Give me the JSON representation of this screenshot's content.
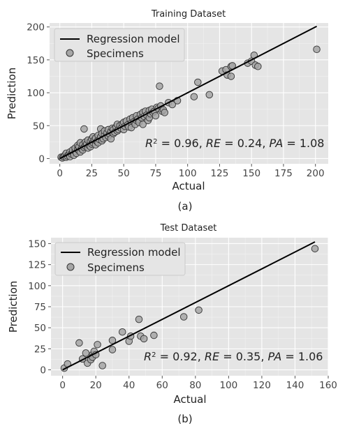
{
  "chart_data": [
    {
      "id": "a",
      "type": "scatter",
      "title": "Training Dataset",
      "xlabel": "Actual",
      "ylabel": "Prediction",
      "xlim": [
        -8,
        210
      ],
      "ylim": [
        -8,
        206
      ],
      "xticks": [
        0,
        25,
        50,
        75,
        100,
        125,
        150,
        175,
        200
      ],
      "yticks": [
        0,
        50,
        100,
        150,
        200
      ],
      "grid": true,
      "background": "#e5e5e5",
      "legend_position": "top-left",
      "legend": [
        "Regression model",
        "Specimens"
      ],
      "regression_line": {
        "x": [
          0,
          201
        ],
        "y": [
          0,
          201
        ]
      },
      "annotation": {
        "r2": "0.96",
        "re": "0.24",
        "pa": "1.08"
      },
      "caption": "(a)",
      "points": [
        [
          1,
          2
        ],
        [
          2,
          1
        ],
        [
          3,
          3
        ],
        [
          4,
          5
        ],
        [
          5,
          2
        ],
        [
          5,
          8
        ],
        [
          6,
          4
        ],
        [
          7,
          6
        ],
        [
          8,
          10
        ],
        [
          8,
          3
        ],
        [
          9,
          7
        ],
        [
          10,
          9
        ],
        [
          10,
          13
        ],
        [
          11,
          5
        ],
        [
          12,
          11
        ],
        [
          12,
          16
        ],
        [
          13,
          8
        ],
        [
          14,
          14
        ],
        [
          14,
          20
        ],
        [
          15,
          12
        ],
        [
          15,
          18
        ],
        [
          16,
          24
        ],
        [
          16,
          10
        ],
        [
          17,
          15
        ],
        [
          18,
          21
        ],
        [
          18,
          13
        ],
        [
          19,
          17
        ],
        [
          19,
          45
        ],
        [
          20,
          25
        ],
        [
          20,
          19
        ],
        [
          21,
          22
        ],
        [
          22,
          16
        ],
        [
          22,
          28
        ],
        [
          23,
          20
        ],
        [
          24,
          26
        ],
        [
          24,
          18
        ],
        [
          25,
          30
        ],
        [
          25,
          22
        ],
        [
          26,
          24
        ],
        [
          26,
          33
        ],
        [
          27,
          28
        ],
        [
          28,
          21
        ],
        [
          28,
          31
        ],
        [
          29,
          26
        ],
        [
          30,
          35
        ],
        [
          30,
          24
        ],
        [
          31,
          29
        ],
        [
          32,
          33
        ],
        [
          32,
          45
        ],
        [
          33,
          38
        ],
        [
          33,
          27
        ],
        [
          34,
          30
        ],
        [
          35,
          36
        ],
        [
          35,
          42
        ],
        [
          36,
          32
        ],
        [
          37,
          39
        ],
        [
          38,
          34
        ],
        [
          38,
          44
        ],
        [
          39,
          37
        ],
        [
          40,
          41
        ],
        [
          40,
          30
        ],
        [
          41,
          46
        ],
        [
          42,
          38
        ],
        [
          42,
          44
        ],
        [
          43,
          40
        ],
        [
          44,
          48
        ],
        [
          45,
          42
        ],
        [
          45,
          52
        ],
        [
          46,
          44
        ],
        [
          47,
          50
        ],
        [
          48,
          46
        ],
        [
          49,
          53
        ],
        [
          50,
          55
        ],
        [
          50,
          44
        ],
        [
          51,
          49
        ],
        [
          52,
          57
        ],
        [
          53,
          51
        ],
        [
          54,
          48
        ],
        [
          55,
          60
        ],
        [
          56,
          54
        ],
        [
          56,
          47
        ],
        [
          57,
          62
        ],
        [
          58,
          56
        ],
        [
          59,
          52
        ],
        [
          60,
          65
        ],
        [
          60,
          58
        ],
        [
          61,
          60
        ],
        [
          62,
          55
        ],
        [
          63,
          67
        ],
        [
          64,
          62
        ],
        [
          65,
          70
        ],
        [
          65,
          52
        ],
        [
          66,
          64
        ],
        [
          67,
          72
        ],
        [
          68,
          66
        ],
        [
          69,
          58
        ],
        [
          70,
          73
        ],
        [
          70,
          62
        ],
        [
          71,
          68
        ],
        [
          72,
          75
        ],
        [
          73,
          70
        ],
        [
          74,
          72
        ],
        [
          75,
          65
        ],
        [
          76,
          78
        ],
        [
          77,
          76
        ],
        [
          78,
          110
        ],
        [
          79,
          80
        ],
        [
          80,
          72
        ],
        [
          81,
          74
        ],
        [
          82,
          70
        ],
        [
          85,
          85
        ],
        [
          88,
          82
        ],
        [
          92,
          88
        ],
        [
          105,
          94
        ],
        [
          108,
          116
        ],
        [
          117,
          97
        ],
        [
          127,
          133
        ],
        [
          130,
          135
        ],
        [
          131,
          127
        ],
        [
          134,
          140
        ],
        [
          134,
          125
        ],
        [
          135,
          141
        ],
        [
          147,
          145
        ],
        [
          150,
          148
        ],
        [
          152,
          157
        ],
        [
          153,
          142
        ],
        [
          155,
          140
        ],
        [
          201,
          166
        ]
      ]
    },
    {
      "id": "b",
      "type": "scatter",
      "title": "Test Dataset",
      "xlabel": "Actual",
      "ylabel": "Prediction",
      "xlim": [
        -7,
        160
      ],
      "ylim": [
        -7,
        157
      ],
      "xticks": [
        0,
        20,
        40,
        60,
        80,
        100,
        120,
        140,
        160
      ],
      "yticks": [
        0,
        25,
        50,
        75,
        100,
        125,
        150
      ],
      "grid": true,
      "background": "#e5e5e5",
      "legend_position": "top-left",
      "legend": [
        "Regression model",
        "Specimens"
      ],
      "regression_line": {
        "x": [
          0,
          152
        ],
        "y": [
          0,
          152
        ]
      },
      "annotation": {
        "r2": "0.92",
        "re": "0.35",
        "pa": "1.06"
      },
      "caption": "(b)",
      "points": [
        [
          1,
          2
        ],
        [
          3,
          7
        ],
        [
          10,
          32
        ],
        [
          12,
          13
        ],
        [
          14,
          20
        ],
        [
          15,
          8
        ],
        [
          17,
          12
        ],
        [
          18,
          18
        ],
        [
          18,
          15
        ],
        [
          19,
          22
        ],
        [
          20,
          18
        ],
        [
          21,
          30
        ],
        [
          24,
          5
        ],
        [
          30,
          35
        ],
        [
          30,
          24
        ],
        [
          36,
          45
        ],
        [
          40,
          34
        ],
        [
          41,
          40
        ],
        [
          46,
          60
        ],
        [
          47,
          40
        ],
        [
          49,
          37
        ],
        [
          55,
          41
        ],
        [
          73,
          63
        ],
        [
          82,
          71
        ],
        [
          152,
          144
        ]
      ]
    }
  ]
}
